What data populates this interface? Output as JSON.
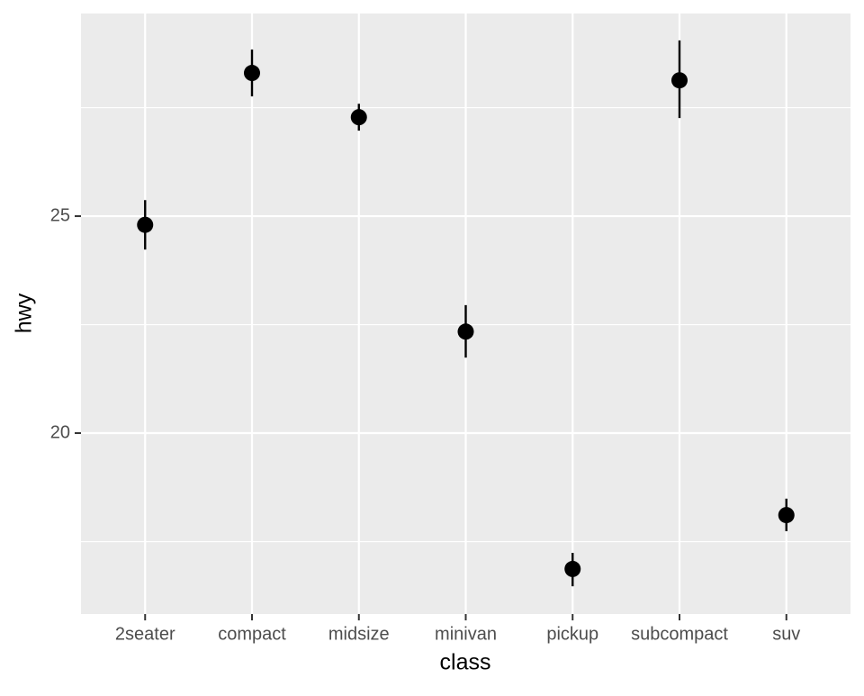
{
  "chart_data": {
    "type": "pointrange",
    "x_label": "class",
    "y_label": "hwy",
    "categories": [
      "2seater",
      "compact",
      "midsize",
      "minivan",
      "pickup",
      "subcompact",
      "suv"
    ],
    "values": [
      24.8,
      28.3,
      27.28,
      22.34,
      16.87,
      28.13,
      18.11
    ],
    "lower": [
      24.23,
      27.76,
      26.97,
      21.74,
      16.47,
      27.26,
      17.74
    ],
    "upper": [
      25.37,
      28.84,
      27.59,
      22.95,
      17.24,
      29.05,
      18.49
    ],
    "color": "#000000",
    "ylim": [
      15.83,
      29.67
    ],
    "yticks": [
      20,
      25
    ],
    "minor_yticks": [
      17.5,
      22.5,
      27.5
    ],
    "grid": true
  }
}
